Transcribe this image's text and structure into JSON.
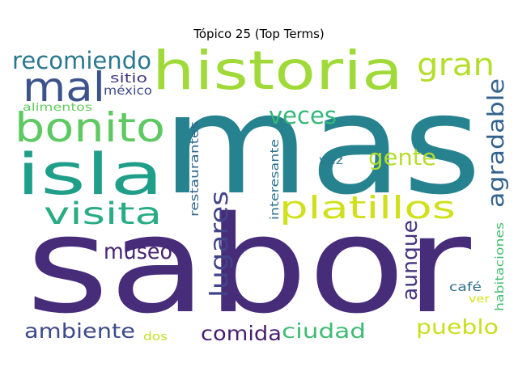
{
  "title": "Tópico 25 (Top Terms)",
  "words": [
    {
      "text": "mas",
      "color": "#26828e"
    },
    {
      "text": "sabor",
      "color": "#472c7a"
    },
    {
      "text": "historia",
      "color": "#a0da39"
    },
    {
      "text": "isla",
      "color": "#1f9e89"
    },
    {
      "text": "bonito",
      "color": "#5ec962"
    },
    {
      "text": "mal",
      "color": "#3b528b"
    },
    {
      "text": "gran",
      "color": "#b5de2b"
    },
    {
      "text": "platillos",
      "color": "#d0e11c"
    },
    {
      "text": "visita",
      "color": "#27ad81"
    },
    {
      "text": "recomiendo",
      "color": "#2a788e"
    },
    {
      "text": "lugares",
      "color": "#414487"
    },
    {
      "text": "veces",
      "color": "#35b779"
    },
    {
      "text": "agradable",
      "color": "#33638d"
    },
    {
      "text": "gente",
      "color": "#b5de2b"
    },
    {
      "text": "museo",
      "color": "#482475"
    },
    {
      "text": "aunque",
      "color": "#46327e"
    },
    {
      "text": "ambiente",
      "color": "#3e4989"
    },
    {
      "text": "comida",
      "color": "#481f70"
    },
    {
      "text": "ciudad",
      "color": "#3fbc73"
    },
    {
      "text": "pueblo",
      "color": "#c8e020"
    },
    {
      "text": "sitio",
      "color": "#443983"
    },
    {
      "text": "méxico",
      "color": "#3e4a89"
    },
    {
      "text": "alimentos",
      "color": "#63cb5f"
    },
    {
      "text": "restaurantes",
      "color": "#31688e"
    },
    {
      "text": "interesante",
      "color": "#2c728e"
    },
    {
      "text": "vez",
      "color": "#2a788e"
    },
    {
      "text": "habitaciones",
      "color": "#44bf70"
    },
    {
      "text": "café",
      "color": "#2e6f8e"
    },
    {
      "text": "ver",
      "color": "#d8e219"
    },
    {
      "text": "dos",
      "color": "#c2df23"
    }
  ]
}
